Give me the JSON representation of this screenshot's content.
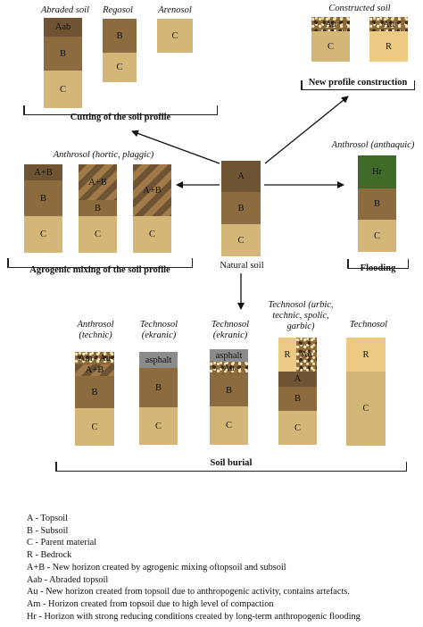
{
  "top_left": {
    "titles": [
      "Abraded soil",
      "Regosol",
      "Arenosol"
    ],
    "horizons": {
      "aab": "Aab",
      "b": "B",
      "c": "C"
    },
    "caption": "Cutting of the soil profile"
  },
  "top_right": {
    "title": "Constructed soil",
    "horizons": {
      "au": "Au",
      "c": "C",
      "r": "R"
    },
    "caption": "New profile construction"
  },
  "middle_left": {
    "title": "Anthrosol (hortic, plaggic)",
    "horizons": {
      "ab": "A+B",
      "b": "B",
      "c": "C"
    },
    "caption": "Agrogenic mixing of the soil profile"
  },
  "center": {
    "horizons": {
      "a": "A",
      "b": "B",
      "c": "C"
    },
    "label": "Natural soil"
  },
  "right": {
    "title": "Anthrosol (anthaquic)",
    "horizons": {
      "hr": "Hr",
      "b": "B",
      "c": "C"
    },
    "caption": "Flooding"
  },
  "bottom": {
    "titles": [
      "Anthrosol (technic)",
      "Technosol (ekranic)",
      "Technosol (ekranic)",
      "Technosol (urbic, technic, spolic, garbic)",
      "Technosol"
    ],
    "horizons": {
      "am": "Am",
      "au": "Au",
      "ab": "A+B",
      "b": "B",
      "c": "C",
      "asphalt": "asphalt",
      "r": "R",
      "a": "A"
    },
    "caption": "Soil burial"
  },
  "legend": [
    "A - Topsoil",
    "B - Subsoil",
    "C - Parent material",
    "R - Bedrock",
    "A+B - New horizon created by agrogenic mixing oftopsoil and subsoil",
    "Aab - Abraded topsoil",
    "Au - New horizon created from topsoil due to anthropogenic activity, contains artefacts.",
    "Am - Horizon created from topsoil due to high level of compaction",
    "Hr - Horizon with strong reducing conditions created by long-term anthropogenic flooding"
  ],
  "colors": {
    "topsoil": "#6f5433",
    "subsoil": "#8c6c3f",
    "parent": "#d4b778",
    "bedrock": "#ecca83",
    "gley": "#3f6a28",
    "asphalt": "#8b8b8b"
  }
}
